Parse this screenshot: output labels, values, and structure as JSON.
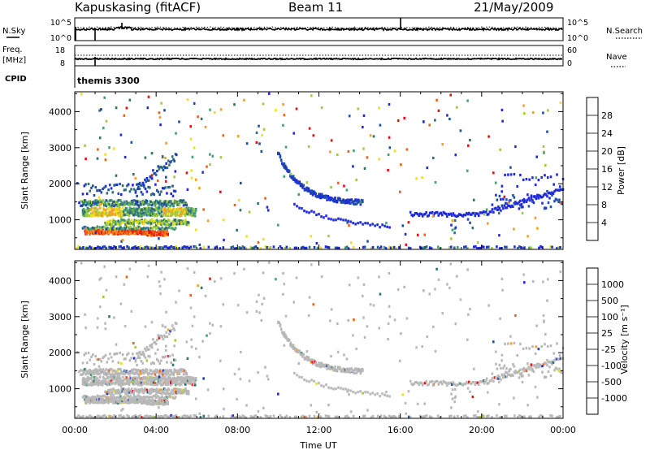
{
  "header": {
    "station": "Kapuskasing (fitACF)",
    "beam": "Beam 11",
    "date": "21/May/2009"
  },
  "top_panels": {
    "nsky_label": "N.Sky",
    "nsky_tick_top": "10^5",
    "nsky_tick_bottom": "10^0",
    "nsearch_label": "N.Search",
    "nsearch_tick_top": "10^5",
    "nsearch_tick_bottom": "10^0",
    "freq_label": "Freq.",
    "freq_unit": "[MHz]",
    "freq_tick_top": "18",
    "freq_tick_bottom": "8",
    "nave_label": "Nave",
    "nave_tick_top": "60",
    "nave_tick_bottom": "0",
    "cpid_label": "CPID",
    "cpid_value": "themis 3300"
  },
  "colors": {
    "scale": [
      "#1f2bd8",
      "#1f4fa8",
      "#2f7070",
      "#46a078",
      "#a0cc3c",
      "#f0e020",
      "#f4a020",
      "#f06018",
      "#e81010"
    ],
    "gray": "#b8b8b8"
  },
  "chart_data": [
    {
      "type": "heatmap",
      "name": "power",
      "ylabel": "Slant Range [km]",
      "xlabel": "",
      "x_range_hours": [
        0,
        24
      ],
      "ylim": [
        180,
        4550
      ],
      "yticks": [
        "1000",
        "2000",
        "3000",
        "4000"
      ],
      "colorbar": {
        "label": "Power [dB]",
        "ticks": [
          "4",
          "8",
          "12",
          "16",
          "20",
          "24",
          "28"
        ],
        "range": [
          0,
          32
        ]
      },
      "features": [
        {
          "band": "near range E-region echoes",
          "t": [
            0.5,
            6.0
          ],
          "range_km": [
            200,
            260
          ]
        },
        {
          "band": "dense morning echoes",
          "t": [
            0.3,
            6.0
          ],
          "range_km": [
            600,
            1700
          ]
        },
        {
          "band": "afternoon arc",
          "t": [
            10.0,
            14.2
          ],
          "range_km": [
            1450,
            2900
          ]
        },
        {
          "band": "evening band",
          "t": [
            16.5,
            24.0
          ],
          "range_km": [
            1200,
            2200
          ]
        }
      ]
    },
    {
      "type": "heatmap",
      "name": "velocity",
      "ylabel": "Slant Range [km]",
      "xlabel": "Time UT",
      "x_range_hours": [
        0,
        24
      ],
      "xticks": [
        "00:00",
        "04:00",
        "08:00",
        "12:00",
        "16:00",
        "20:00",
        "00:00"
      ],
      "ylim": [
        180,
        4550
      ],
      "yticks": [
        "1000",
        "2000",
        "3000",
        "4000"
      ],
      "colorbar": {
        "label": "Velocity [m s⁻¹]",
        "ticks": [
          "1000",
          "500",
          "100",
          "25",
          "-25",
          "-100",
          "-500",
          "-1000"
        ]
      }
    }
  ]
}
